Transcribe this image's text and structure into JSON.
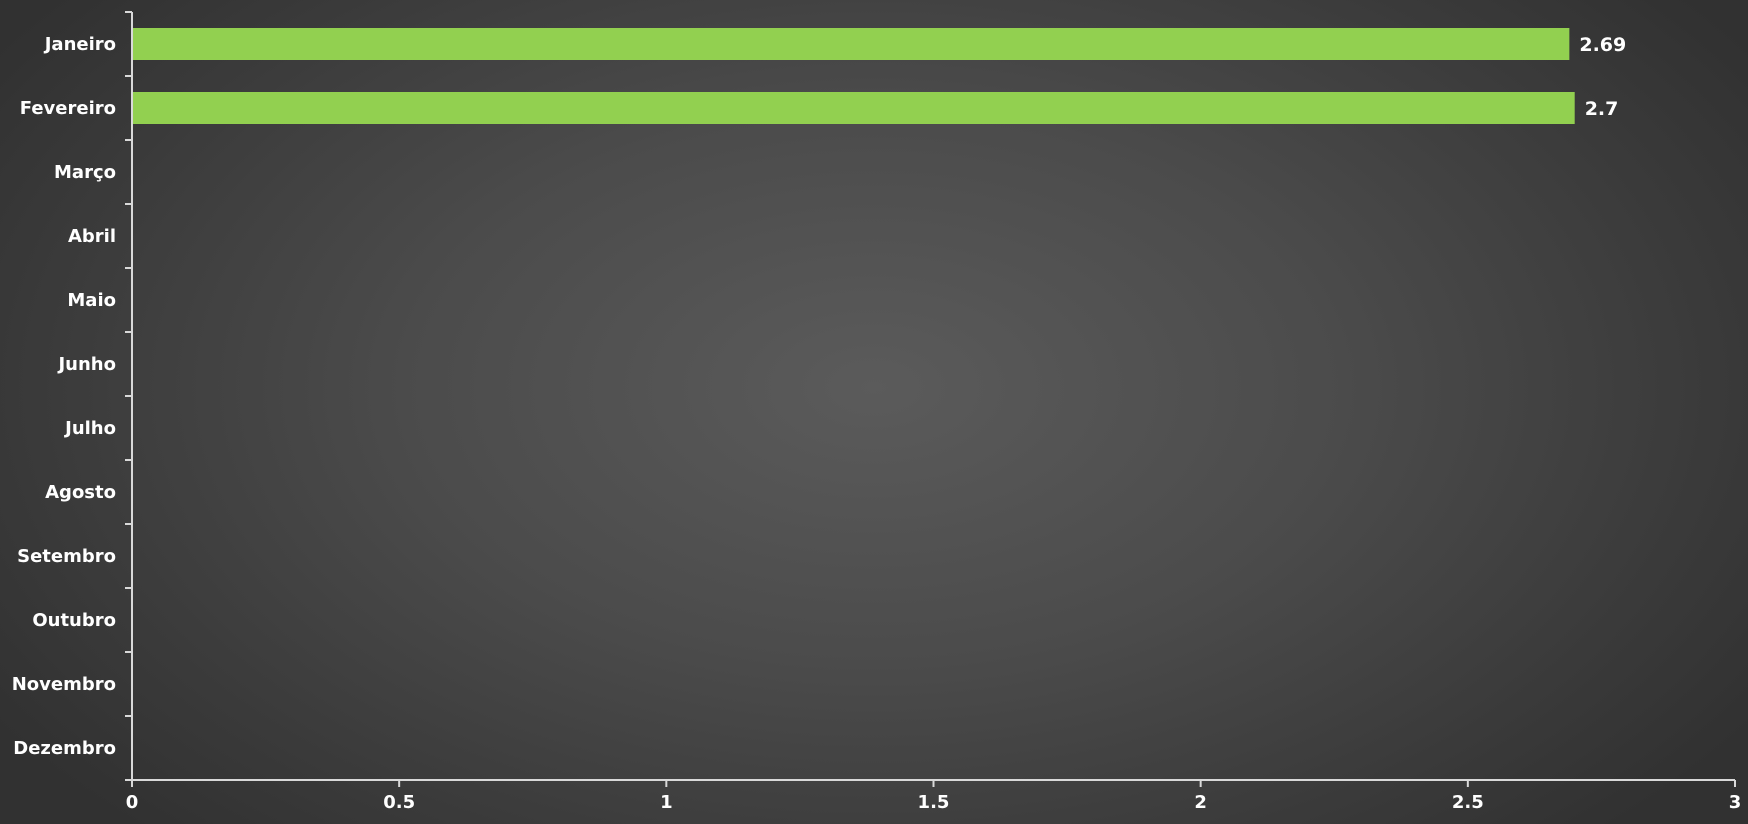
{
  "chart_data": {
    "type": "bar",
    "orientation": "horizontal",
    "title": "",
    "xlabel": "",
    "ylabel": "",
    "categories": [
      "Janeiro",
      "Fevereiro",
      "Março",
      "Abril",
      "Maio",
      "Junho",
      "Julho",
      "Agosto",
      "Setembro",
      "Outubro",
      "Novembro",
      "Dezembro"
    ],
    "values": [
      2.69,
      2.7,
      null,
      null,
      null,
      null,
      null,
      null,
      null,
      null,
      null,
      null
    ],
    "data_labels": [
      "2.69",
      "2.7",
      "",
      "",
      "",
      "",
      "",
      "",
      "",
      "",
      "",
      ""
    ],
    "x_ticks": [
      "0",
      "0.5",
      "1",
      "1.5",
      "2",
      "2.5",
      "3"
    ],
    "xlim": [
      0,
      3
    ],
    "grid": false,
    "legend": "none",
    "colors": {
      "bar": "#92d050",
      "axis": "#d9d9d9",
      "text": "#ffffff",
      "background": "#4a4a4a"
    }
  }
}
